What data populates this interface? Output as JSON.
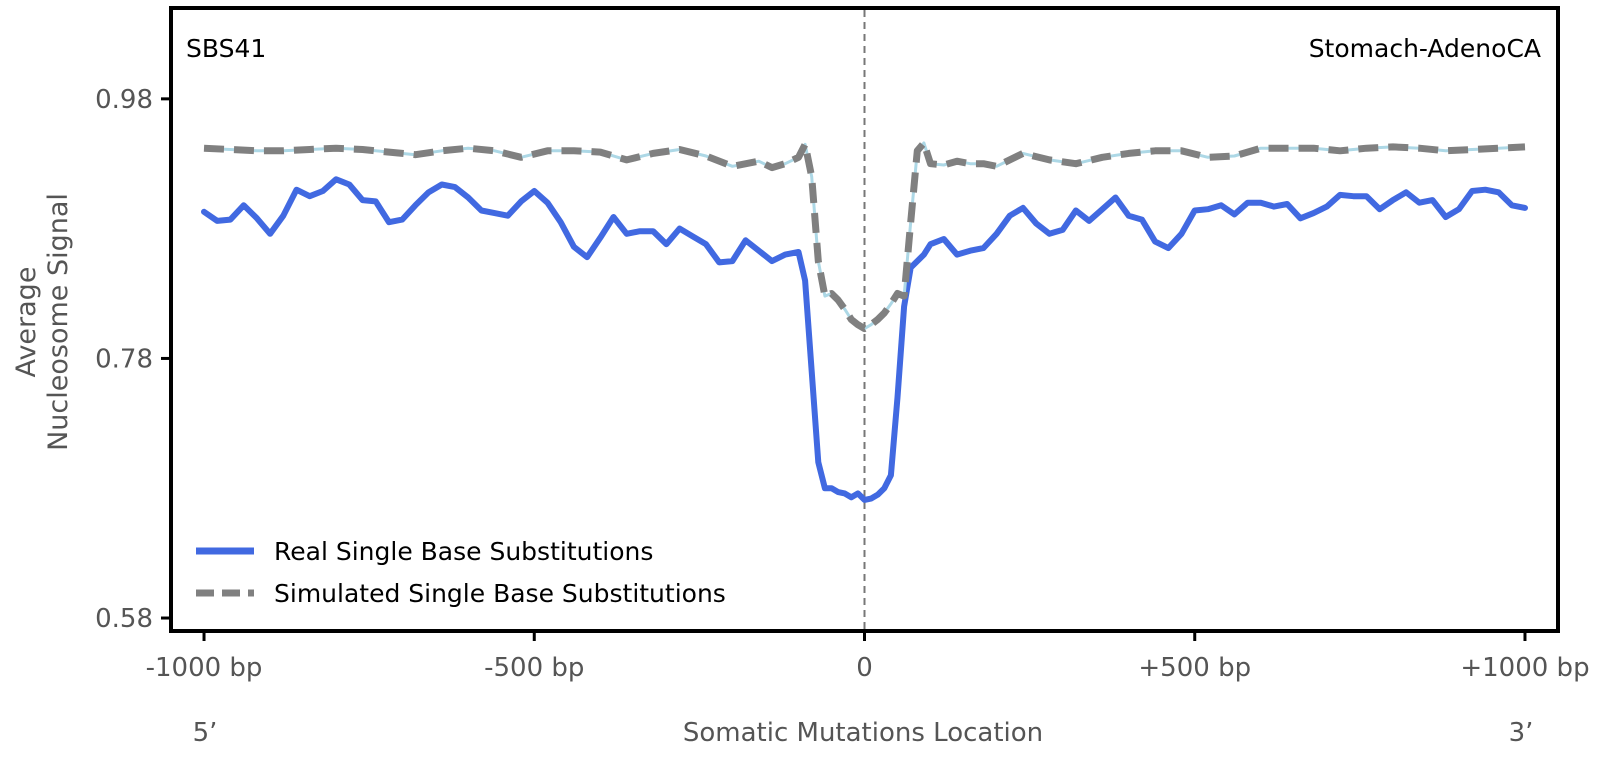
{
  "chart_data": {
    "type": "line",
    "signature_label": "SBS41",
    "cancer_type_label": "Stomach-AdenoCA",
    "ylabel_lines": [
      "Average",
      "Nucleosome Signal"
    ],
    "xlabel": "Somatic Mutations Location",
    "five_prime_label": "5’",
    "three_prime_label": "3’",
    "xlim": [
      -1050,
      1050
    ],
    "ylim": [
      0.57,
      1.05
    ],
    "x_ticks": [
      {
        "value": -1000,
        "label": "-1000 bp"
      },
      {
        "value": -500,
        "label": "-500 bp"
      },
      {
        "value": 0,
        "label": "0"
      },
      {
        "value": 500,
        "label": "+500 bp"
      },
      {
        "value": 1000,
        "label": "+1000 bp"
      }
    ],
    "y_ticks": [
      {
        "value": 0.58,
        "label": "0.58"
      },
      {
        "value": 0.78,
        "label": "0.78"
      },
      {
        "value": 0.98,
        "label": "0.98"
      }
    ],
    "center_line_x": 0,
    "legend_position": "lower-left",
    "series": [
      {
        "name": "Real Single Base Substitutions",
        "color": "#4169e1",
        "style": "solid",
        "x": [
          -1000,
          -980,
          -960,
          -940,
          -920,
          -900,
          -880,
          -860,
          -840,
          -820,
          -800,
          -780,
          -760,
          -740,
          -720,
          -700,
          -680,
          -660,
          -640,
          -620,
          -600,
          -580,
          -560,
          -540,
          -520,
          -500,
          -480,
          -460,
          -440,
          -420,
          -400,
          -380,
          -360,
          -340,
          -320,
          -300,
          -280,
          -260,
          -240,
          -220,
          -200,
          -180,
          -160,
          -140,
          -120,
          -100,
          -90,
          -80,
          -70,
          -60,
          -50,
          -40,
          -30,
          -20,
          -10,
          0,
          10,
          20,
          30,
          40,
          50,
          60,
          70,
          80,
          90,
          100,
          120,
          140,
          160,
          180,
          200,
          220,
          240,
          260,
          280,
          300,
          320,
          340,
          360,
          380,
          400,
          420,
          440,
          460,
          480,
          500,
          520,
          540,
          560,
          580,
          600,
          620,
          640,
          660,
          680,
          700,
          720,
          740,
          760,
          780,
          800,
          820,
          840,
          860,
          880,
          900,
          920,
          940,
          960,
          980,
          1000
        ],
        "values": [
          0.893,
          0.886,
          0.887,
          0.898,
          0.888,
          0.876,
          0.89,
          0.91,
          0.905,
          0.909,
          0.918,
          0.914,
          0.902,
          0.901,
          0.885,
          0.887,
          0.898,
          0.908,
          0.914,
          0.912,
          0.904,
          0.894,
          0.892,
          0.89,
          0.901,
          0.909,
          0.9,
          0.885,
          0.866,
          0.858,
          0.873,
          0.889,
          0.876,
          0.878,
          0.878,
          0.868,
          0.88,
          0.874,
          0.868,
          0.854,
          0.855,
          0.871,
          0.863,
          0.855,
          0.86,
          0.862,
          0.84,
          0.77,
          0.7,
          0.68,
          0.68,
          0.677,
          0.676,
          0.673,
          0.676,
          0.671,
          0.672,
          0.675,
          0.68,
          0.69,
          0.75,
          0.82,
          0.85,
          0.855,
          0.86,
          0.868,
          0.872,
          0.86,
          0.863,
          0.865,
          0.876,
          0.89,
          0.896,
          0.884,
          0.876,
          0.879,
          0.894,
          0.886,
          0.895,
          0.904,
          0.89,
          0.887,
          0.87,
          0.865,
          0.876,
          0.894,
          0.895,
          0.898,
          0.891,
          0.9,
          0.9,
          0.897,
          0.899,
          0.888,
          0.892,
          0.897,
          0.906,
          0.905,
          0.905,
          0.895,
          0.902,
          0.908,
          0.9,
          0.902,
          0.889,
          0.895,
          0.909,
          0.91,
          0.908,
          0.898,
          0.896
        ]
      },
      {
        "name": "Simulated Single Base Substitutions",
        "color": "#808080",
        "style": "dashed",
        "x": [
          -1000,
          -960,
          -920,
          -880,
          -840,
          -800,
          -760,
          -720,
          -680,
          -640,
          -600,
          -560,
          -520,
          -480,
          -440,
          -400,
          -360,
          -320,
          -280,
          -240,
          -200,
          -160,
          -140,
          -120,
          -100,
          -90,
          -80,
          -70,
          -60,
          -50,
          -40,
          -30,
          -20,
          -10,
          0,
          10,
          20,
          30,
          40,
          50,
          60,
          70,
          80,
          90,
          100,
          120,
          140,
          160,
          180,
          200,
          240,
          280,
          320,
          360,
          400,
          440,
          480,
          520,
          560,
          600,
          640,
          680,
          720,
          760,
          800,
          840,
          880,
          920,
          960,
          1000
        ],
        "values": [
          0.942,
          0.941,
          0.94,
          0.94,
          0.941,
          0.942,
          0.941,
          0.939,
          0.937,
          0.94,
          0.942,
          0.94,
          0.935,
          0.94,
          0.94,
          0.939,
          0.933,
          0.938,
          0.941,
          0.936,
          0.928,
          0.932,
          0.927,
          0.93,
          0.935,
          0.945,
          0.92,
          0.855,
          0.828,
          0.83,
          0.825,
          0.818,
          0.81,
          0.806,
          0.803,
          0.806,
          0.81,
          0.815,
          0.822,
          0.83,
          0.828,
          0.885,
          0.94,
          0.946,
          0.93,
          0.929,
          0.932,
          0.93,
          0.93,
          0.928,
          0.938,
          0.933,
          0.93,
          0.935,
          0.938,
          0.94,
          0.94,
          0.935,
          0.936,
          0.942,
          0.942,
          0.942,
          0.94,
          0.942,
          0.943,
          0.942,
          0.94,
          0.941,
          0.942,
          0.943
        ]
      }
    ]
  }
}
